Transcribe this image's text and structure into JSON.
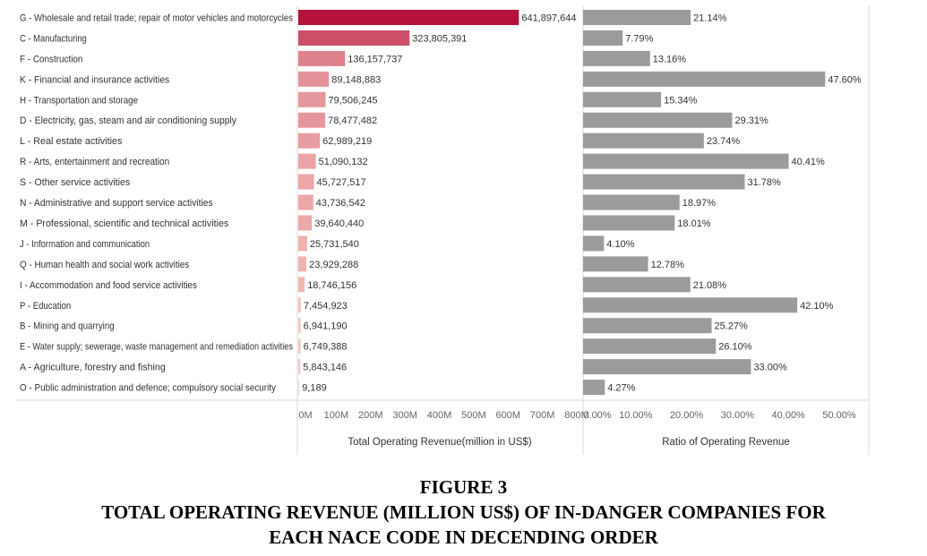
{
  "figure": {
    "label": "FIGURE 3",
    "title_line1": "TOTAL OPERATING REVENUE (MILLION US$) OF IN-DANGER COMPANIES FOR",
    "title_line2": "EACH NACE CODE IN DECENDING ORDER"
  },
  "chart_data": [
    {
      "type": "bar",
      "orientation": "horizontal",
      "xlabel": "Total Operating Revenue(million in US$)",
      "xlim": [
        0,
        800000000
      ],
      "ticks": [
        "0M",
        "100M",
        "200M",
        "300M",
        "400M",
        "500M",
        "600M",
        "700M",
        "800M"
      ],
      "tick_values": [
        0,
        100000000,
        200000000,
        300000000,
        400000000,
        500000000,
        600000000,
        700000000,
        800000000
      ],
      "color_scale": [
        "#fbd3c9",
        "#b5123b"
      ],
      "categories": [
        "G - Wholesale and retail trade; repair of motor vehicles and motorcycles",
        "C - Manufacturing",
        "F - Construction",
        "K - Financial and insurance activities",
        "H - Transportation and storage",
        "D - Electricity, gas, steam and air conditioning supply",
        "L - Real estate activities",
        "R - Arts, entertainment and recreation",
        "S - Other service activities",
        "N - Administrative and support service activities",
        "M - Professional, scientific and technical activities",
        "J - Information and communication",
        "Q - Human health and social work activities",
        "I - Accommodation and food service activities",
        "P - Education",
        "B - Mining and quarrying",
        "E - Water supply; sewerage, waste management and remediation activities",
        "A - Agriculture, forestry and fishing",
        "O - Public administration and defence; compulsory social security"
      ],
      "values": [
        641897644,
        323805391,
        136157737,
        89148883,
        79506245,
        78477482,
        62989219,
        51090132,
        45727517,
        43736542,
        39640440,
        25731540,
        23929288,
        18746156,
        7454923,
        6941190,
        6749388,
        5843146,
        9189
      ],
      "value_labels": [
        "641,897,644",
        "323,805,391",
        "136,157,737",
        "89,148,883",
        "79,506,245",
        "78,477,482",
        "62,989,219",
        "51,090,132",
        "45,727,517",
        "43,736,542",
        "39,640,440",
        "25,731,540",
        "23,929,288",
        "18,746,156",
        "7,454,923",
        "6,941,190",
        "6,749,388",
        "5,843,146",
        "9,189"
      ]
    },
    {
      "type": "bar",
      "orientation": "horizontal",
      "xlabel": "Ratio of Operating Revenue",
      "xlim": [
        0,
        0.5
      ],
      "ticks": [
        "0.00%",
        "10.00%",
        "20.00%",
        "30.00%",
        "40.00%",
        "50.00%"
      ],
      "tick_values": [
        0,
        0.1,
        0.2,
        0.3,
        0.4,
        0.5
      ],
      "color": "#9b9b9b",
      "values": [
        0.2114,
        0.0779,
        0.1316,
        0.476,
        0.1534,
        0.2931,
        0.2374,
        0.4041,
        0.3178,
        0.1897,
        0.1801,
        0.041,
        0.1278,
        0.2108,
        0.421,
        0.2527,
        0.261,
        0.33,
        0.0427
      ],
      "value_labels": [
        "21.14%",
        "7.79%",
        "13.16%",
        "47.60%",
        "15.34%",
        "29.31%",
        "23.74%",
        "40.41%",
        "31.78%",
        "18.97%",
        "18.01%",
        "4.10%",
        "12.78%",
        "21.08%",
        "42.10%",
        "25.27%",
        "26.10%",
        "33.00%",
        "4.27%"
      ]
    }
  ]
}
